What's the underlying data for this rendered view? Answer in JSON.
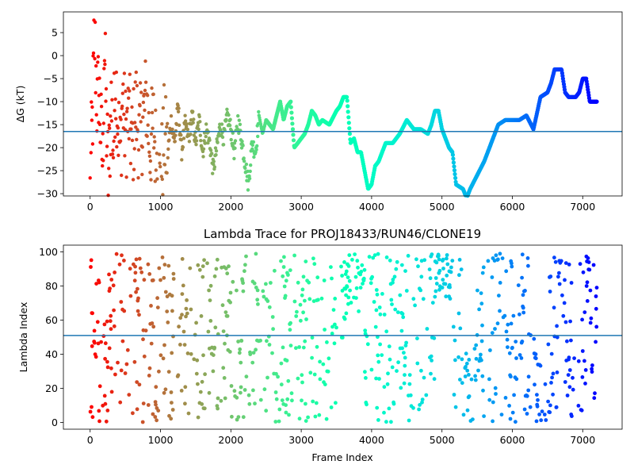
{
  "chart_data": [
    {
      "type": "scatter",
      "title": "",
      "xlabel": "",
      "ylabel": "ΔG (kT)",
      "xlim": [
        -380,
        7560
      ],
      "ylim": [
        -30.5,
        9.5
      ],
      "xticks": [
        0,
        1000,
        2000,
        3000,
        4000,
        5000,
        6000,
        7000
      ],
      "yticks": [
        5,
        0,
        -5,
        -10,
        -15,
        -20,
        -25,
        -30
      ],
      "colormap": "rainbow (red at frame 0 → violet at frame 7200)",
      "reference_line": -16.5,
      "reference_line_color": "#1f77b4",
      "series": [
        {
          "trace_points": [
            [
              0,
              -30
            ],
            [
              20,
              -20
            ],
            [
              40,
              -10
            ],
            [
              60,
              5
            ],
            [
              80,
              -2
            ],
            [
              100,
              -12
            ],
            [
              120,
              -6
            ],
            [
              150,
              -16
            ],
            [
              180,
              -24
            ],
            [
              200,
              4
            ],
            [
              230,
              -14
            ],
            [
              260,
              -27
            ],
            [
              300,
              -10
            ],
            [
              330,
              -20
            ],
            [
              360,
              -4
            ],
            [
              400,
              -15
            ],
            [
              430,
              -22
            ],
            [
              460,
              -8
            ],
            [
              500,
              -17
            ],
            [
              550,
              -13
            ],
            [
              600,
              -20
            ],
            [
              650,
              -11
            ],
            [
              700,
              -18
            ],
            [
              750,
              -14
            ],
            [
              800,
              -9
            ],
            [
              850,
              -20
            ],
            [
              900,
              -15
            ],
            [
              950,
              -24
            ],
            [
              1000,
              -29
            ],
            [
              1050,
              -17
            ],
            [
              1100,
              -22
            ],
            [
              1150,
              -14
            ],
            [
              1200,
              -19
            ],
            [
              1250,
              -11
            ],
            [
              1300,
              -21
            ],
            [
              1350,
              -15
            ],
            [
              1400,
              -18
            ],
            [
              1450,
              -13
            ],
            [
              1500,
              -19
            ],
            [
              1550,
              -14
            ],
            [
              1600,
              -21
            ],
            [
              1650,
              -16
            ],
            [
              1700,
              -19
            ],
            [
              1750,
              -25
            ],
            [
              1800,
              -20
            ],
            [
              1850,
              -15
            ],
            [
              1900,
              -18
            ],
            [
              1950,
              -13
            ],
            [
              2000,
              -16
            ],
            [
              2050,
              -21
            ],
            [
              2100,
              -14
            ],
            [
              2150,
              -18
            ],
            [
              2200,
              -23
            ],
            [
              2250,
              -28
            ],
            [
              2300,
              -19
            ],
            [
              2350,
              -21
            ],
            [
              2400,
              -13
            ],
            [
              2450,
              -17
            ],
            [
              2500,
              -14
            ],
            [
              2600,
              -16
            ],
            [
              2650,
              -13
            ],
            [
              2700,
              -10
            ],
            [
              2750,
              -14
            ],
            [
              2800,
              -11
            ],
            [
              2850,
              -10
            ],
            [
              2900,
              -20
            ],
            [
              2950,
              -19
            ],
            [
              3000,
              -18
            ],
            [
              3050,
              -17
            ],
            [
              3100,
              -15
            ],
            [
              3150,
              -12
            ],
            [
              3200,
              -13
            ],
            [
              3250,
              -15
            ],
            [
              3300,
              -14
            ],
            [
              3400,
              -15
            ],
            [
              3500,
              -12
            ],
            [
              3550,
              -11
            ],
            [
              3600,
              -9
            ],
            [
              3650,
              -9
            ],
            [
              3700,
              -19
            ],
            [
              3750,
              -18
            ],
            [
              3800,
              -21
            ],
            [
              3850,
              -21
            ],
            [
              3900,
              -25
            ],
            [
              3950,
              -29
            ],
            [
              4000,
              -28
            ],
            [
              4050,
              -24
            ],
            [
              4100,
              -23
            ],
            [
              4200,
              -19
            ],
            [
              4300,
              -19
            ],
            [
              4400,
              -17
            ],
            [
              4500,
              -14
            ],
            [
              4600,
              -16
            ],
            [
              4700,
              -16
            ],
            [
              4800,
              -17
            ],
            [
              4850,
              -15
            ],
            [
              4900,
              -12
            ],
            [
              4950,
              -12
            ],
            [
              5000,
              -16
            ],
            [
              5100,
              -20
            ],
            [
              5150,
              -21
            ],
            [
              5200,
              -28
            ],
            [
              5300,
              -29
            ],
            [
              5350,
              -31
            ],
            [
              5400,
              -29
            ],
            [
              5500,
              -26
            ],
            [
              5600,
              -23
            ],
            [
              5700,
              -19
            ],
            [
              5800,
              -15
            ],
            [
              5900,
              -14
            ],
            [
              6000,
              -14
            ],
            [
              6100,
              -14
            ],
            [
              6200,
              -13
            ],
            [
              6300,
              -16
            ],
            [
              6400,
              -9
            ],
            [
              6500,
              -8
            ],
            [
              6550,
              -6
            ],
            [
              6600,
              -3
            ],
            [
              6700,
              -3
            ],
            [
              6750,
              -8
            ],
            [
              6800,
              -9
            ],
            [
              6900,
              -9
            ],
            [
              6950,
              -8
            ],
            [
              7000,
              -5
            ],
            [
              7050,
              -5
            ],
            [
              7100,
              -10
            ],
            [
              7200,
              -10
            ]
          ]
        }
      ]
    },
    {
      "type": "scatter",
      "title": "Lambda Trace for PROJ18433/RUN46/CLONE19",
      "xlabel": "Frame Index",
      "ylabel": "Lambda Index",
      "xlim": [
        -380,
        7560
      ],
      "ylim": [
        -4,
        104
      ],
      "xticks": [
        0,
        1000,
        2000,
        3000,
        4000,
        5000,
        6000,
        7000
      ],
      "yticks": [
        0,
        20,
        40,
        60,
        80,
        100
      ],
      "colormap": "rainbow (red at frame 0 → violet at frame 7200)",
      "reference_line": 51,
      "reference_line_color": "#1f77b4",
      "x_range": [
        0,
        7200
      ],
      "y_range": [
        0,
        99
      ],
      "dense_bands": [
        [
          3600,
          3900,
          60,
          99
        ],
        [
          4900,
          5150,
          70,
          99
        ],
        [
          5300,
          5500,
          0,
          55
        ],
        [
          6300,
          6500,
          0,
          50
        ],
        [
          6650,
          6750,
          60,
          99
        ],
        [
          7050,
          7100,
          70,
          99
        ]
      ]
    }
  ]
}
